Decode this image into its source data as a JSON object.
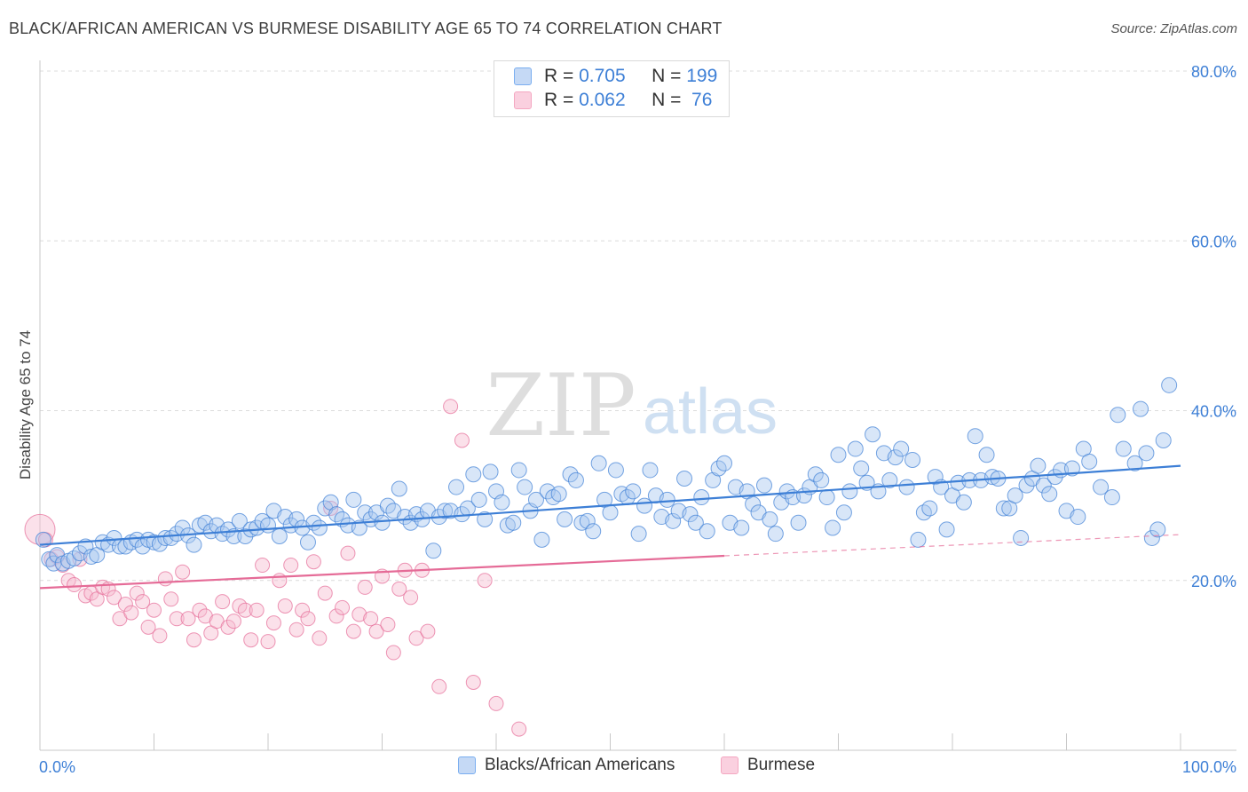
{
  "title": "BLACK/AFRICAN AMERICAN VS BURMESE DISABILITY AGE 65 TO 74 CORRELATION CHART",
  "source": "Source: ZipAtlas.com",
  "watermark": {
    "zip": "ZIP",
    "atlas": "atlas"
  },
  "legend_top": {
    "rows": [
      {
        "r_label": "R = ",
        "r_value": "0.705",
        "n_label": "N = ",
        "n_value": "199",
        "color": "#7aaef0"
      },
      {
        "r_label": "R = ",
        "r_value": "0.062",
        "n_label": "N = ",
        "n_value": " 76",
        "color": "#f4a7c1"
      }
    ]
  },
  "legend_bottom": [
    {
      "label": "Blacks/African Americans",
      "color": "#7aaef0"
    },
    {
      "label": "Burmese",
      "color": "#f4a7c1"
    }
  ],
  "chart_data": {
    "type": "scatter",
    "title": "BLACK/AFRICAN AMERICAN VS BURMESE DISABILITY AGE 65 TO 74 CORRELATION CHART",
    "xlabel": "",
    "ylabel": "Disability Age 65 to 74",
    "xlim": [
      0,
      100
    ],
    "ylim": [
      0,
      80
    ],
    "x_tick_labels": [
      "0.0%",
      "100.0%"
    ],
    "y_ticks": [
      20,
      40,
      60,
      80
    ],
    "y_tick_labels": [
      "20.0%",
      "40.0%",
      "60.0%",
      "80.0%"
    ],
    "grid": "horizontal dashed",
    "legend_position": "top-center",
    "series": [
      {
        "name": "Blacks/African Americans",
        "color": "#3d7fd6",
        "fill": "#a9c8f0",
        "trend": {
          "x": [
            0,
            100
          ],
          "y": [
            24.2,
            33.5
          ],
          "style": "solid"
        },
        "points": [
          [
            0.3,
            24.8
          ],
          [
            0.8,
            22.5
          ],
          [
            1.2,
            22.0
          ],
          [
            1.5,
            23.0
          ],
          [
            2.0,
            22.0
          ],
          [
            2.5,
            22.3
          ],
          [
            3.0,
            22.6
          ],
          [
            3.5,
            23.2
          ],
          [
            4.0,
            24.0
          ],
          [
            4.5,
            22.8
          ],
          [
            5.0,
            23.0
          ],
          [
            5.5,
            24.5
          ],
          [
            6.0,
            24.2
          ],
          [
            6.5,
            25.0
          ],
          [
            7.0,
            24.0
          ],
          [
            7.5,
            24.0
          ],
          [
            8.0,
            24.5
          ],
          [
            8.5,
            24.8
          ],
          [
            9.0,
            24.0
          ],
          [
            9.5,
            24.8
          ],
          [
            10.0,
            24.5
          ],
          [
            10.5,
            24.3
          ],
          [
            11.0,
            25.0
          ],
          [
            11.5,
            25.0
          ],
          [
            12.0,
            25.5
          ],
          [
            12.5,
            26.2
          ],
          [
            13.0,
            25.3
          ],
          [
            13.5,
            24.2
          ],
          [
            14.0,
            26.5
          ],
          [
            14.5,
            26.8
          ],
          [
            15.0,
            25.8
          ],
          [
            15.5,
            26.5
          ],
          [
            16.0,
            25.5
          ],
          [
            16.5,
            26.0
          ],
          [
            17.0,
            25.2
          ],
          [
            17.5,
            27.0
          ],
          [
            18.0,
            25.2
          ],
          [
            18.5,
            26.0
          ],
          [
            19.0,
            26.2
          ],
          [
            19.5,
            27.0
          ],
          [
            20.0,
            26.5
          ],
          [
            20.5,
            28.2
          ],
          [
            21.0,
            25.2
          ],
          [
            21.5,
            27.5
          ],
          [
            22.0,
            26.5
          ],
          [
            22.5,
            27.2
          ],
          [
            23.0,
            26.2
          ],
          [
            23.5,
            24.5
          ],
          [
            24.0,
            26.8
          ],
          [
            24.5,
            26.2
          ],
          [
            25.0,
            28.5
          ],
          [
            25.5,
            29.2
          ],
          [
            26.0,
            27.8
          ],
          [
            26.5,
            27.2
          ],
          [
            27.0,
            26.5
          ],
          [
            27.5,
            29.5
          ],
          [
            28.0,
            26.2
          ],
          [
            28.5,
            28.0
          ],
          [
            29.0,
            27.2
          ],
          [
            29.5,
            28.0
          ],
          [
            30.0,
            26.8
          ],
          [
            30.5,
            28.8
          ],
          [
            31.0,
            28.2
          ],
          [
            31.5,
            30.8
          ],
          [
            32.0,
            27.5
          ],
          [
            32.5,
            26.8
          ],
          [
            33.0,
            27.8
          ],
          [
            33.5,
            27.2
          ],
          [
            34.0,
            28.2
          ],
          [
            34.5,
            23.5
          ],
          [
            35.0,
            27.5
          ],
          [
            35.5,
            28.2
          ],
          [
            36.0,
            28.2
          ],
          [
            36.5,
            31.0
          ],
          [
            37.0,
            27.8
          ],
          [
            37.5,
            28.5
          ],
          [
            38.0,
            32.5
          ],
          [
            38.5,
            29.5
          ],
          [
            39.0,
            27.2
          ],
          [
            39.5,
            32.8
          ],
          [
            40.0,
            30.5
          ],
          [
            40.5,
            29.2
          ],
          [
            41.0,
            26.5
          ],
          [
            41.5,
            26.8
          ],
          [
            42.0,
            33.0
          ],
          [
            42.5,
            31.0
          ],
          [
            43.0,
            28.2
          ],
          [
            43.5,
            29.5
          ],
          [
            44.0,
            24.8
          ],
          [
            44.5,
            30.5
          ],
          [
            45.0,
            29.8
          ],
          [
            45.5,
            30.2
          ],
          [
            46.0,
            27.2
          ],
          [
            46.5,
            32.5
          ],
          [
            47.0,
            31.8
          ],
          [
            47.5,
            26.8
          ],
          [
            48.0,
            27.0
          ],
          [
            48.5,
            25.8
          ],
          [
            49.0,
            33.8
          ],
          [
            49.5,
            29.5
          ],
          [
            50.0,
            28.0
          ],
          [
            50.5,
            33.0
          ],
          [
            51.0,
            30.2
          ],
          [
            51.5,
            29.8
          ],
          [
            52.0,
            30.5
          ],
          [
            52.5,
            25.5
          ],
          [
            53.0,
            28.8
          ],
          [
            53.5,
            33.0
          ],
          [
            54.0,
            30.0
          ],
          [
            54.5,
            27.5
          ],
          [
            55.0,
            29.5
          ],
          [
            55.5,
            27.0
          ],
          [
            56.0,
            28.2
          ],
          [
            56.5,
            32.0
          ],
          [
            57.0,
            27.8
          ],
          [
            57.5,
            26.8
          ],
          [
            58.0,
            29.8
          ],
          [
            58.5,
            25.8
          ],
          [
            59.0,
            31.8
          ],
          [
            59.5,
            33.2
          ],
          [
            60.0,
            33.8
          ],
          [
            60.5,
            26.8
          ],
          [
            61.0,
            31.0
          ],
          [
            61.5,
            26.2
          ],
          [
            62.0,
            30.5
          ],
          [
            62.5,
            29.0
          ],
          [
            63.0,
            28.0
          ],
          [
            63.5,
            31.2
          ],
          [
            64.0,
            27.2
          ],
          [
            64.5,
            25.5
          ],
          [
            65.0,
            29.2
          ],
          [
            65.5,
            30.5
          ],
          [
            66.0,
            29.8
          ],
          [
            66.5,
            26.8
          ],
          [
            67.0,
            30.0
          ],
          [
            67.5,
            31.0
          ],
          [
            68.0,
            32.5
          ],
          [
            68.5,
            31.8
          ],
          [
            69.0,
            29.8
          ],
          [
            69.5,
            26.2
          ],
          [
            70.0,
            34.8
          ],
          [
            70.5,
            28.0
          ],
          [
            71.0,
            30.5
          ],
          [
            71.5,
            35.5
          ],
          [
            72.0,
            33.2
          ],
          [
            72.5,
            31.5
          ],
          [
            73.0,
            37.2
          ],
          [
            73.5,
            30.5
          ],
          [
            74.0,
            35.0
          ],
          [
            74.5,
            31.8
          ],
          [
            75.0,
            34.5
          ],
          [
            75.5,
            35.5
          ],
          [
            76.0,
            31.0
          ],
          [
            76.5,
            34.2
          ],
          [
            77.0,
            24.8
          ],
          [
            77.5,
            28.0
          ],
          [
            78.0,
            28.5
          ],
          [
            78.5,
            32.2
          ],
          [
            79.0,
            31.0
          ],
          [
            79.5,
            26.0
          ],
          [
            80.0,
            30.0
          ],
          [
            80.5,
            31.5
          ],
          [
            81.0,
            29.2
          ],
          [
            81.5,
            31.8
          ],
          [
            82.0,
            37.0
          ],
          [
            82.5,
            31.8
          ],
          [
            83.0,
            34.8
          ],
          [
            83.5,
            32.2
          ],
          [
            84.0,
            32.0
          ],
          [
            84.5,
            28.5
          ],
          [
            85.0,
            28.5
          ],
          [
            85.5,
            30.0
          ],
          [
            86.0,
            25.0
          ],
          [
            86.5,
            31.2
          ],
          [
            87.0,
            32.0
          ],
          [
            87.5,
            33.5
          ],
          [
            88.0,
            31.2
          ],
          [
            88.5,
            30.2
          ],
          [
            89.0,
            32.2
          ],
          [
            89.5,
            33.0
          ],
          [
            90.0,
            28.2
          ],
          [
            90.5,
            33.2
          ],
          [
            91.0,
            27.5
          ],
          [
            91.5,
            35.5
          ],
          [
            92.0,
            34.0
          ],
          [
            93.0,
            31.0
          ],
          [
            94.0,
            29.8
          ],
          [
            94.5,
            39.5
          ],
          [
            95.0,
            35.5
          ],
          [
            96.0,
            33.8
          ],
          [
            96.5,
            40.2
          ],
          [
            97.0,
            35.0
          ],
          [
            97.5,
            25.0
          ],
          [
            98.0,
            26.0
          ],
          [
            98.5,
            36.5
          ],
          [
            99.0,
            43.0
          ]
        ]
      },
      {
        "name": "Burmese",
        "color": "#e56b97",
        "fill": "#f6bdd0",
        "trend": {
          "x": [
            0,
            60
          ],
          "y": [
            19.1,
            22.9
          ],
          "style": "solid",
          "extension": {
            "x": [
              60,
              100
            ],
            "y": [
              22.9,
              25.4
            ],
            "style": "dashed"
          }
        },
        "points": [
          [
            0.0,
            26.0
          ],
          [
            0.5,
            24.8
          ],
          [
            1.0,
            22.5
          ],
          [
            1.5,
            22.8
          ],
          [
            2.0,
            21.8
          ],
          [
            2.5,
            20.0
          ],
          [
            3.0,
            19.5
          ],
          [
            3.5,
            22.5
          ],
          [
            4.0,
            18.2
          ],
          [
            4.5,
            18.5
          ],
          [
            5.0,
            17.8
          ],
          [
            5.5,
            19.2
          ],
          [
            6.0,
            19.0
          ],
          [
            6.5,
            18.0
          ],
          [
            7.0,
            15.5
          ],
          [
            7.5,
            17.2
          ],
          [
            8.0,
            16.2
          ],
          [
            8.5,
            18.5
          ],
          [
            9.0,
            17.5
          ],
          [
            9.5,
            14.5
          ],
          [
            10.0,
            16.5
          ],
          [
            10.5,
            13.5
          ],
          [
            11.0,
            20.2
          ],
          [
            11.5,
            17.8
          ],
          [
            12.0,
            15.5
          ],
          [
            12.5,
            21.0
          ],
          [
            13.0,
            15.5
          ],
          [
            13.5,
            13.0
          ],
          [
            14.0,
            16.5
          ],
          [
            14.5,
            15.8
          ],
          [
            15.0,
            13.8
          ],
          [
            15.5,
            15.2
          ],
          [
            16.0,
            17.5
          ],
          [
            16.5,
            14.5
          ],
          [
            17.0,
            15.2
          ],
          [
            17.5,
            17.0
          ],
          [
            18.0,
            16.5
          ],
          [
            18.5,
            13.0
          ],
          [
            19.0,
            16.5
          ],
          [
            19.5,
            21.8
          ],
          [
            20.0,
            12.8
          ],
          [
            20.5,
            15.0
          ],
          [
            21.0,
            20.0
          ],
          [
            21.5,
            17.0
          ],
          [
            22.0,
            21.8
          ],
          [
            22.5,
            14.2
          ],
          [
            23.0,
            16.5
          ],
          [
            23.5,
            15.5
          ],
          [
            24.0,
            22.2
          ],
          [
            24.5,
            13.2
          ],
          [
            25.0,
            18.5
          ],
          [
            25.5,
            28.5
          ],
          [
            26.0,
            15.8
          ],
          [
            26.5,
            16.8
          ],
          [
            27.0,
            23.2
          ],
          [
            27.5,
            14.0
          ],
          [
            28.0,
            16.0
          ],
          [
            28.5,
            19.2
          ],
          [
            29.0,
            15.5
          ],
          [
            29.5,
            14.0
          ],
          [
            30.0,
            20.5
          ],
          [
            30.5,
            14.8
          ],
          [
            31.0,
            11.5
          ],
          [
            31.5,
            19.0
          ],
          [
            32.0,
            21.2
          ],
          [
            32.5,
            18.0
          ],
          [
            33.0,
            13.2
          ],
          [
            33.5,
            21.2
          ],
          [
            34.0,
            14.0
          ],
          [
            35.0,
            7.5
          ],
          [
            36.0,
            40.5
          ],
          [
            37.0,
            36.5
          ],
          [
            38.0,
            8.0
          ],
          [
            39.0,
            20.0
          ],
          [
            40.0,
            5.5
          ],
          [
            42.0,
            2.5
          ]
        ]
      }
    ]
  }
}
